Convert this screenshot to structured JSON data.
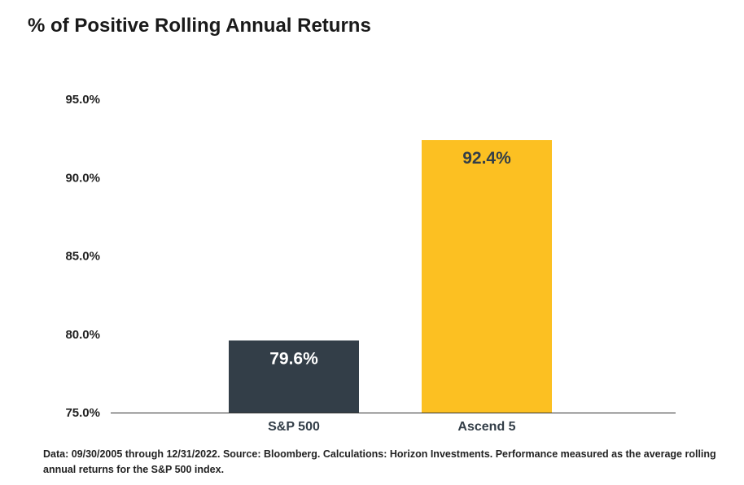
{
  "chart_data": {
    "type": "bar",
    "title": "% of Positive Rolling Annual Returns",
    "categories": [
      "S&P 500",
      "Ascend 5"
    ],
    "values": [
      79.6,
      92.4
    ],
    "data_labels": [
      "79.6%",
      "92.4%"
    ],
    "bar_colors": [
      "#333e48",
      "#fcc022"
    ],
    "data_label_colors": [
      "#ffffff",
      "#333e48"
    ],
    "xlabel": "",
    "ylabel": "",
    "ylim": [
      75.0,
      95.0
    ],
    "yticks": [
      75.0,
      80.0,
      85.0,
      90.0,
      95.0
    ],
    "ytick_labels": [
      "75.0%",
      "80.0%",
      "85.0%",
      "90.0%",
      "95.0%"
    ],
    "grid": false,
    "legend": "none"
  },
  "footnote": "Data: 09/30/2005 through 12/31/2022. Source: Bloomberg. Calculations: Horizon Investments. Performance measured as the average rolling annual returns for the S&P 500 index."
}
